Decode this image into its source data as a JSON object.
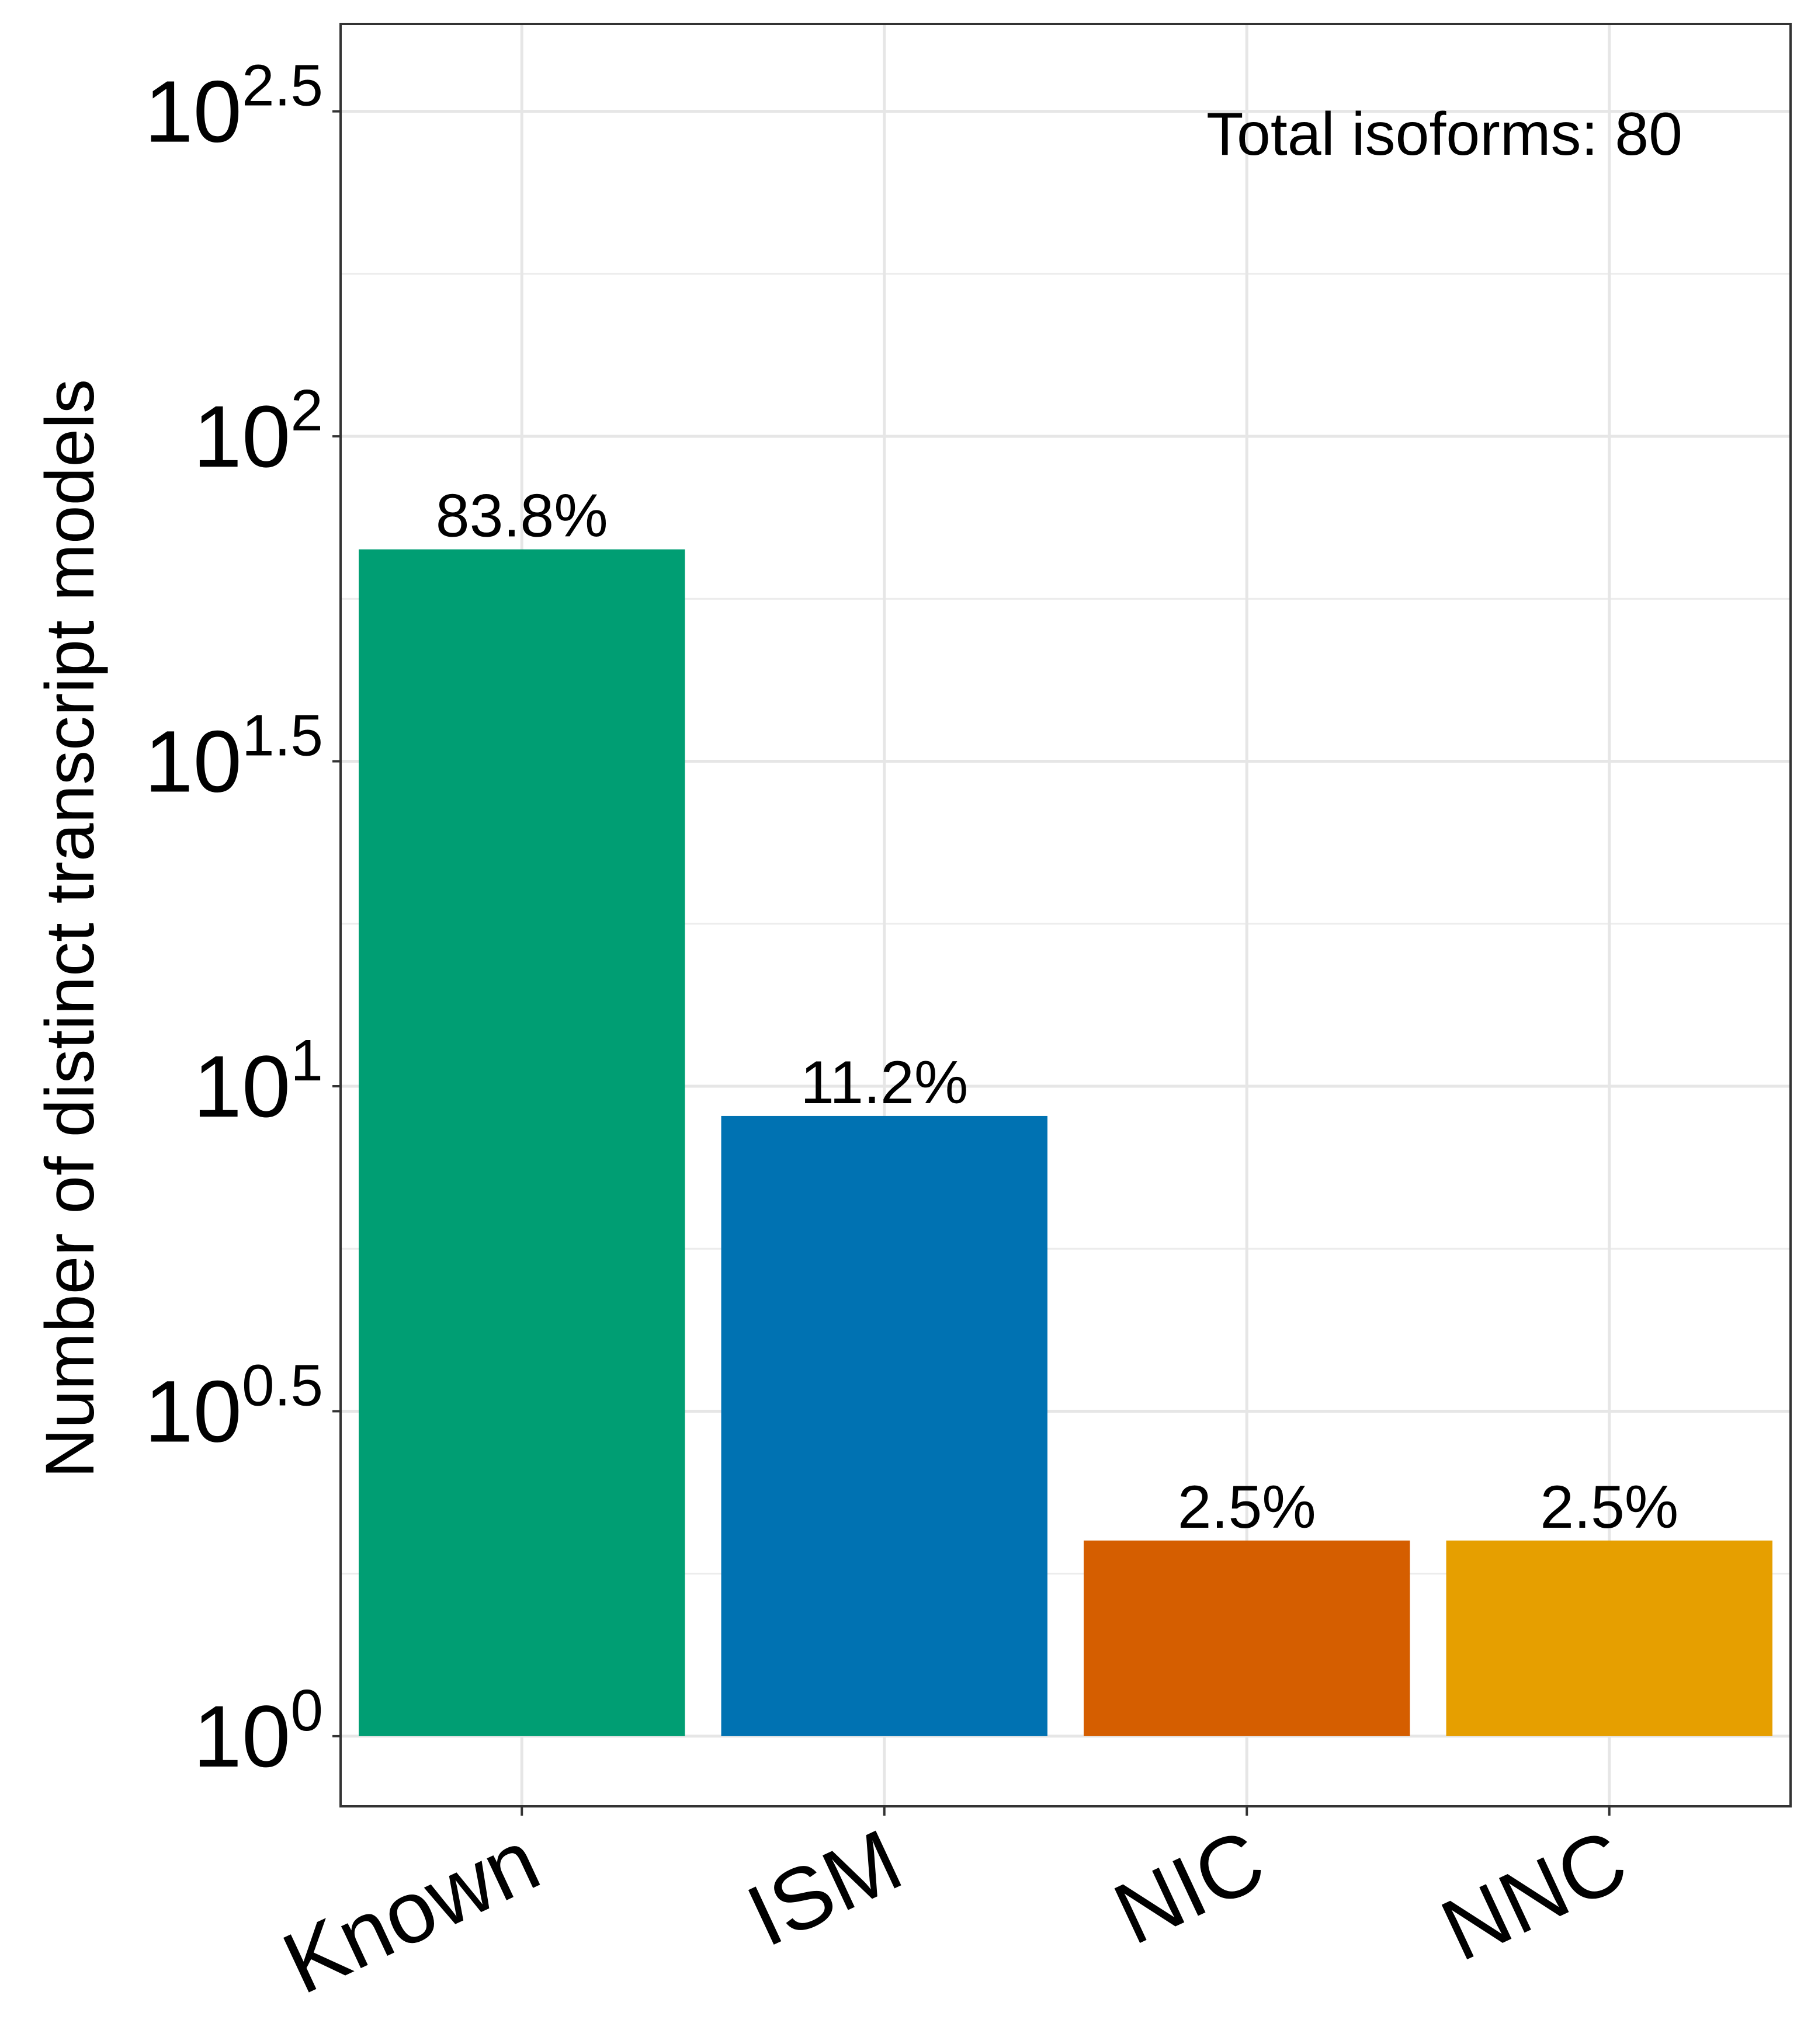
{
  "chart_data": {
    "type": "bar",
    "ylabel": "Number of distinct transcript models",
    "yscale": "log10",
    "ylim": [
      0.78,
      431
    ],
    "categories": [
      "Known",
      "ISM",
      "NIC",
      "NNC"
    ],
    "values": [
      67,
      9,
      2,
      2
    ],
    "bar_labels": [
      "83.8%",
      "11.2%",
      "2.5%",
      "2.5%"
    ],
    "colors": [
      "#009E73",
      "#0072B2",
      "#D55E00",
      "#E69F00"
    ],
    "y_ticks": [
      {
        "value": 1,
        "base": "10",
        "exp": "0"
      },
      {
        "value": 3.1623,
        "base": "10",
        "exp": "0.5"
      },
      {
        "value": 10,
        "base": "10",
        "exp": "1"
      },
      {
        "value": 31.623,
        "base": "10",
        "exp": "1.5"
      },
      {
        "value": 100,
        "base": "10",
        "exp": "2"
      },
      {
        "value": 316.23,
        "base": "10",
        "exp": "2.5"
      }
    ],
    "y_minor_ticks": [
      1.7783,
      5.6234,
      17.783,
      56.234,
      177.83
    ],
    "annotation": "Total isoforms: 80",
    "grid": true
  }
}
